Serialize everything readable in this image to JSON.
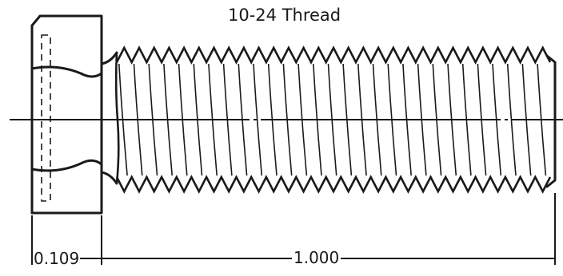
{
  "title": "10-24 Thread",
  "dimensions": {
    "head_height": "0.109",
    "length": "1.000"
  },
  "colors": {
    "stroke": "#1a1a1a",
    "background": "#ffffff"
  }
}
